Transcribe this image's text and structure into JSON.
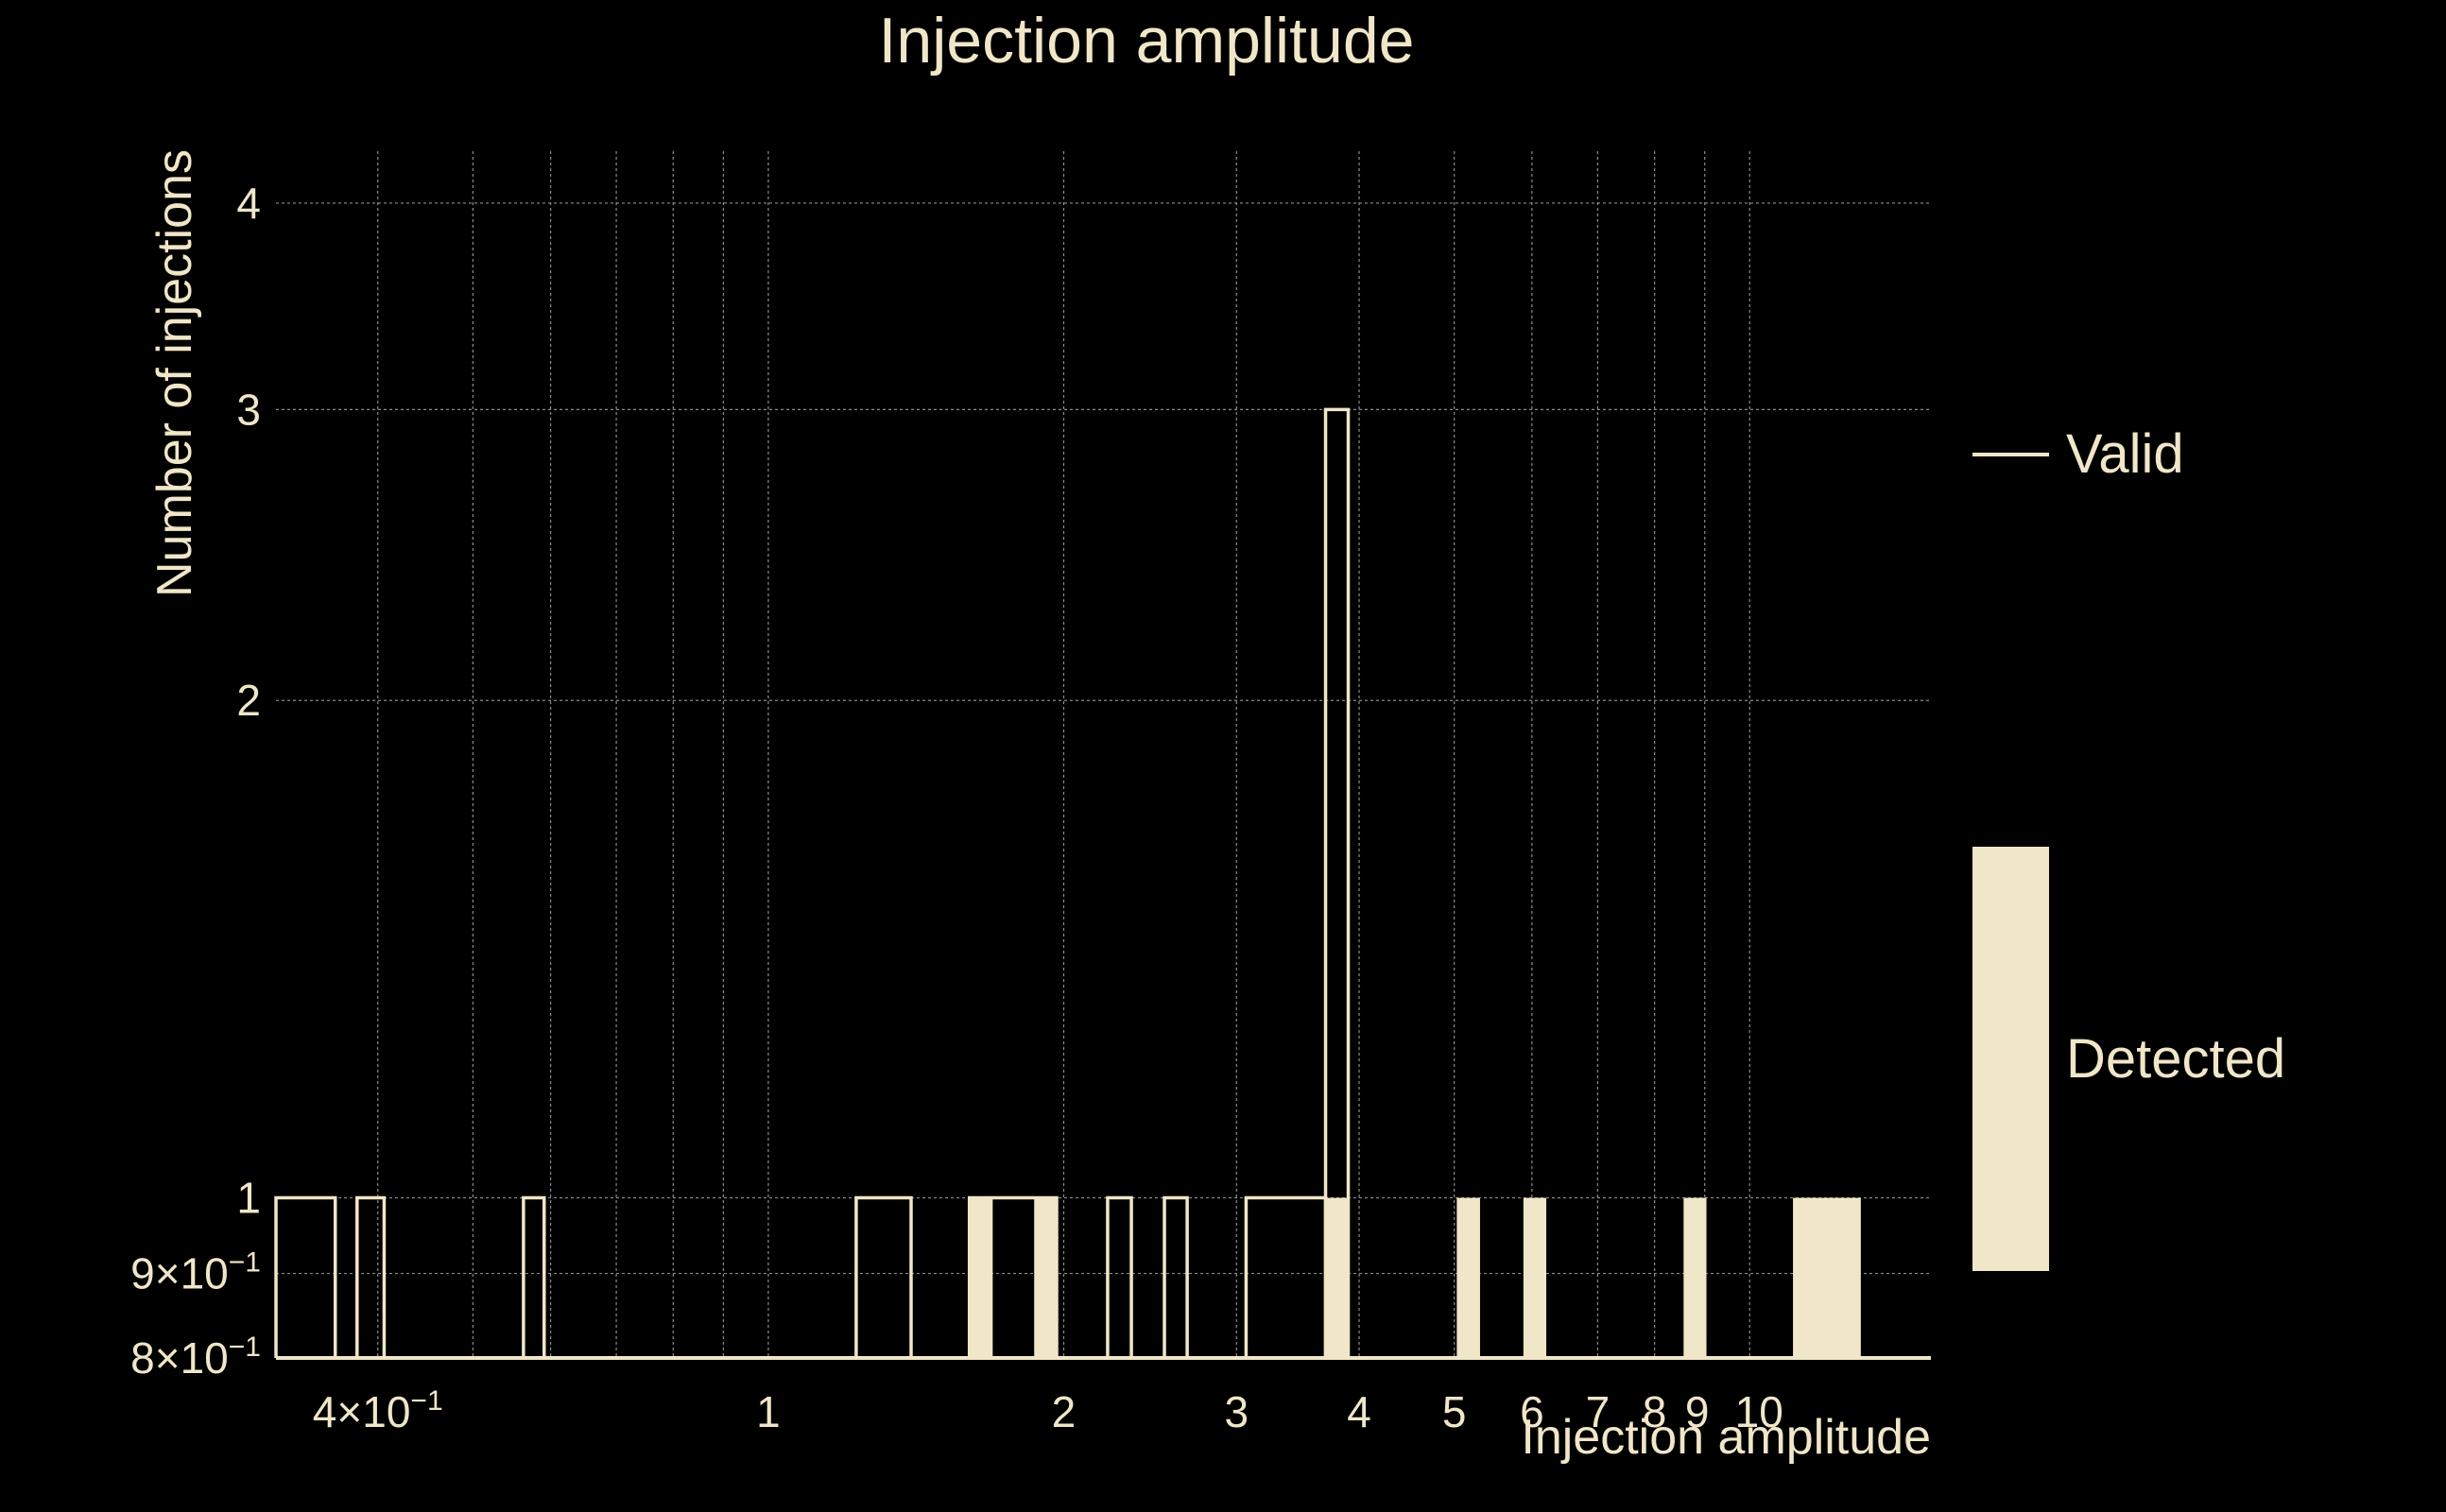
{
  "colors": {
    "background": "#000000",
    "foreground": "#f0e6c8",
    "grid": "#8c8c8c",
    "valid_outline": "#f0e6c8",
    "detected_fill": "#f0e6c8"
  },
  "chart_data": {
    "type": "bar",
    "title": "Injection amplitude",
    "xlabel": "Injection amplitude",
    "ylabel": "Number of injections",
    "xscale": "log",
    "yscale": "log",
    "xlim": [
      0.315,
      15.3
    ],
    "ylim": [
      0.8,
      4.3
    ],
    "grid": true,
    "legend_position": "right",
    "x_ticks": [
      {
        "value": 0.4,
        "label": "4×10",
        "exp": "−1"
      },
      {
        "value": 1,
        "label": "1"
      },
      {
        "value": 2,
        "label": "2"
      },
      {
        "value": 3,
        "label": "3"
      },
      {
        "value": 4,
        "label": "4"
      },
      {
        "value": 5,
        "label": "5"
      },
      {
        "value": 6,
        "label": "6"
      },
      {
        "value": 7,
        "label": "7"
      },
      {
        "value": 8,
        "label": "8"
      },
      {
        "value": 9,
        "label": "9"
      },
      {
        "value": 10,
        "label": "10"
      }
    ],
    "x_minor_grid": [
      0.5,
      0.6,
      0.7,
      0.8,
      0.9
    ],
    "y_ticks": [
      {
        "value": 0.8,
        "label": "8×10",
        "exp": "−1"
      },
      {
        "value": 0.9,
        "label": "9×10",
        "exp": "−1"
      },
      {
        "value": 1,
        "label": "1"
      },
      {
        "value": 2,
        "label": "2"
      },
      {
        "value": 3,
        "label": "3"
      },
      {
        "value": 4,
        "label": "4"
      }
    ],
    "series": [
      {
        "name": "Valid",
        "style": "step",
        "bins": [
          {
            "x0": 0.315,
            "x1": 0.362,
            "count": 1
          },
          {
            "x0": 0.381,
            "x1": 0.406,
            "count": 1
          },
          {
            "x0": 0.563,
            "x1": 0.591,
            "count": 1
          },
          {
            "x0": 1.229,
            "x1": 1.398,
            "count": 1
          },
          {
            "x0": 1.603,
            "x1": 1.967,
            "count": 1
          },
          {
            "x0": 2.217,
            "x1": 2.344,
            "count": 1
          },
          {
            "x0": 2.533,
            "x1": 2.672,
            "count": 1
          },
          {
            "x0": 3.068,
            "x1": 3.697,
            "count": 1
          },
          {
            "x0": 3.697,
            "x1": 3.899,
            "count": 3
          }
        ]
      },
      {
        "name": "Detected",
        "style": "filled",
        "bins": [
          {
            "x0": 1.603,
            "x1": 1.693,
            "count": 1
          },
          {
            "x0": 1.866,
            "x1": 1.967,
            "count": 1
          },
          {
            "x0": 3.697,
            "x1": 3.899,
            "count": 1
          },
          {
            "x0": 5.03,
            "x1": 5.312,
            "count": 1
          },
          {
            "x0": 5.881,
            "x1": 6.205,
            "count": 1
          },
          {
            "x0": 8.564,
            "x1": 9.036,
            "count": 1
          },
          {
            "x0": 11.07,
            "x1": 12.98,
            "count": 1
          }
        ]
      }
    ]
  }
}
